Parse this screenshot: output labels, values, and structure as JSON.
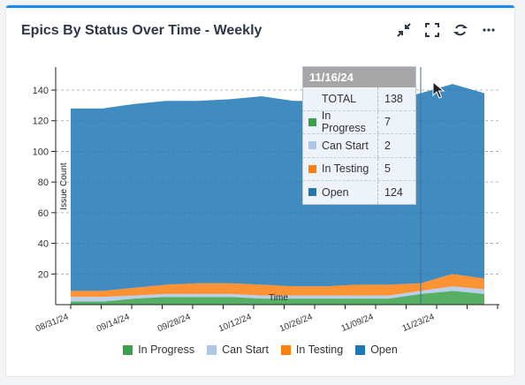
{
  "widget": {
    "title": "Epics By Status Over Time - Weekly",
    "actions": [
      {
        "name": "collapse-button",
        "icon": "collapse-icon"
      },
      {
        "name": "fullscreen-button",
        "icon": "fullscreen-icon"
      },
      {
        "name": "refresh-button",
        "icon": "refresh-icon"
      },
      {
        "name": "more-button",
        "icon": "more-icon"
      }
    ]
  },
  "tooltip": {
    "date": "11/16/24",
    "rows": [
      {
        "label": "TOTAL",
        "value": "138",
        "color": ""
      },
      {
        "label": "In Progress",
        "value": "7",
        "color": "#3aa14a"
      },
      {
        "label": "Can Start",
        "value": "2",
        "color": "#aec7e8"
      },
      {
        "label": "In Testing",
        "value": "5",
        "color": "#ff7f0e"
      },
      {
        "label": "Open",
        "value": "124",
        "color": "#1f77b4"
      }
    ]
  },
  "chart_data": {
    "type": "area",
    "stacked": true,
    "ylabel": "Issue Count",
    "xlabel": "Time",
    "ylim": [
      0,
      155
    ],
    "yticks": [
      20,
      40,
      60,
      80,
      100,
      120,
      140
    ],
    "grid": "horizontal-dashed",
    "x_labels": [
      "08/31/24",
      "09/14/24",
      "09/28/24",
      "10/12/24",
      "10/26/24",
      "11/09/24",
      "11/23/24"
    ],
    "x": [
      "08/31/24",
      "09/07/24",
      "09/14/24",
      "09/21/24",
      "09/28/24",
      "10/05/24",
      "10/12/24",
      "10/19/24",
      "10/26/24",
      "11/02/24",
      "11/09/24",
      "11/16/24",
      "11/23/24",
      "11/30/24"
    ],
    "series": [
      {
        "name": "In Progress",
        "color": "#3aa14a",
        "values": [
          2,
          2,
          4,
          5,
          5,
          5,
          4,
          4,
          4,
          4,
          4,
          7,
          9,
          7
        ]
      },
      {
        "name": "Can Start",
        "color": "#aec7e8",
        "values": [
          3,
          3,
          2,
          2,
          2,
          2,
          2,
          2,
          2,
          2,
          2,
          2,
          3,
          3
        ]
      },
      {
        "name": "In Testing",
        "color": "#ff7f0e",
        "values": [
          4,
          4,
          5,
          6,
          7,
          7,
          7,
          6,
          6,
          7,
          7,
          5,
          8,
          7
        ]
      },
      {
        "name": "Open",
        "color": "#1f77b4",
        "values": [
          119,
          119,
          120,
          120,
          119,
          120,
          123,
          121,
          121,
          120,
          120,
          124,
          124,
          121
        ]
      }
    ],
    "legend": "bottom-center"
  }
}
